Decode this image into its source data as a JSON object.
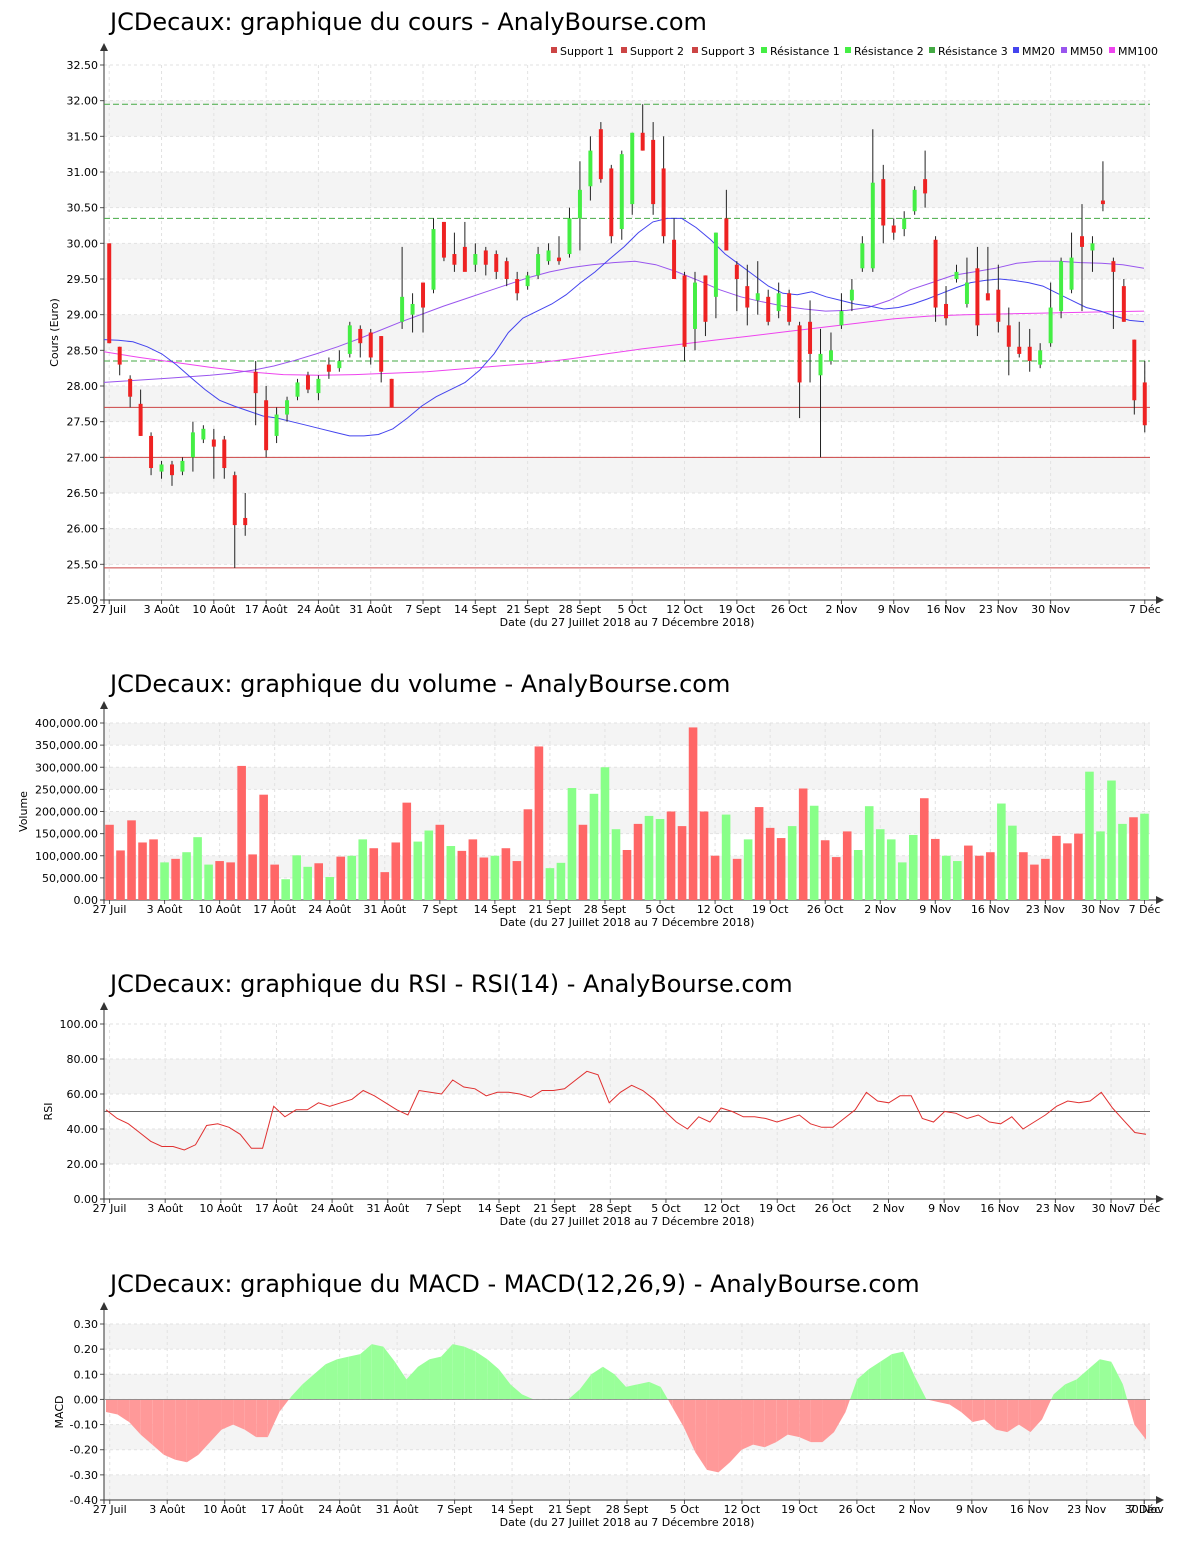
{
  "x_axis": {
    "title": "Date (du 27 Juillet 2018 au 7 Décembre 2018)",
    "ticks": [
      "27 Juil",
      "3 Août",
      "10 Août",
      "17 Août",
      "24 Août",
      "31 Août",
      "7 Sept",
      "14 Sept",
      "21 Sept",
      "28 Sept",
      "5 Oct",
      "12 Oct",
      "19 Oct",
      "26 Oct",
      "2 Nov",
      "9 Nov",
      "16 Nov",
      "23 Nov",
      "30 Nov",
      "7 Déc"
    ]
  },
  "colors": {
    "up": "#44ee44",
    "down": "#ee2222",
    "vol_up": "#88ff88",
    "vol_down": "#ff6666",
    "support": "#cc4444",
    "resistance": "#44aa44",
    "mm20": "#4444ee",
    "mm50": "#9955ee",
    "mm100": "#ee44ee"
  },
  "chart_data": [
    {
      "id": "price",
      "type": "candlestick",
      "title": "JCDecaux: graphique du cours - AnalyBourse.com",
      "ylabel": "Cours (Euro)",
      "ylim": [
        25,
        32.5
      ],
      "yticks": [
        "25.00",
        "25.50",
        "26.00",
        "26.50",
        "27.00",
        "27.50",
        "28.00",
        "28.50",
        "29.00",
        "29.50",
        "30.00",
        "30.50",
        "31.00",
        "31.50",
        "32.00",
        "32.50"
      ],
      "legend": [
        "Support 1",
        "Support 2",
        "Support 3",
        "Résistance 1",
        "Résistance 2",
        "Résistance 3",
        "MM20",
        "MM50",
        "MM100"
      ],
      "supports": [
        27.7,
        27.0,
        25.45
      ],
      "resistances": [
        31.95,
        30.35,
        28.35
      ],
      "candles": [
        [
          30.0,
          28.6,
          30.0,
          28.6
        ],
        [
          28.55,
          28.15,
          28.55,
          28.3
        ],
        [
          28.15,
          27.7,
          28.1,
          27.85
        ],
        [
          27.95,
          27.3,
          27.75,
          27.3
        ],
        [
          27.35,
          26.75,
          27.3,
          26.85
        ],
        [
          26.95,
          26.7,
          26.8,
          26.9
        ],
        [
          26.95,
          26.6,
          26.9,
          26.75
        ],
        [
          27.0,
          26.75,
          26.8,
          26.95
        ],
        [
          27.5,
          26.8,
          27.0,
          27.35
        ],
        [
          27.45,
          27.2,
          27.25,
          27.4
        ],
        [
          27.4,
          26.7,
          27.25,
          27.15
        ],
        [
          27.3,
          26.7,
          27.25,
          26.85
        ],
        [
          26.8,
          25.45,
          26.75,
          26.05
        ],
        [
          26.5,
          25.9,
          26.15,
          26.05
        ],
        [
          28.35,
          27.45,
          28.2,
          27.9
        ],
        [
          28.0,
          27.0,
          27.8,
          27.1
        ],
        [
          27.7,
          27.2,
          27.3,
          27.6
        ],
        [
          27.85,
          27.5,
          27.6,
          27.8
        ],
        [
          28.1,
          27.8,
          27.85,
          28.05
        ],
        [
          28.2,
          27.9,
          28.15,
          27.95
        ],
        [
          28.15,
          27.8,
          27.9,
          28.1
        ],
        [
          28.4,
          28.1,
          28.3,
          28.2
        ],
        [
          28.5,
          28.2,
          28.25,
          28.35
        ],
        [
          28.9,
          28.4,
          28.45,
          28.85
        ],
        [
          28.85,
          28.4,
          28.8,
          28.6
        ],
        [
          28.8,
          28.3,
          28.75,
          28.4
        ],
        [
          28.7,
          28.05,
          28.7,
          28.2
        ],
        [
          28.1,
          27.7,
          28.1,
          27.7
        ],
        [
          29.95,
          28.8,
          28.9,
          29.25
        ],
        [
          29.3,
          28.75,
          29.0,
          29.15
        ],
        [
          29.4,
          28.75,
          29.45,
          29.1
        ],
        [
          30.35,
          29.3,
          29.35,
          30.2
        ],
        [
          30.3,
          29.75,
          30.3,
          29.8
        ],
        [
          30.15,
          29.6,
          29.85,
          29.7
        ],
        [
          30.3,
          29.7,
          29.95,
          29.6
        ],
        [
          30.0,
          29.6,
          29.7,
          29.85
        ],
        [
          29.95,
          29.55,
          29.9,
          29.7
        ],
        [
          29.9,
          29.5,
          29.85,
          29.6
        ],
        [
          29.8,
          29.4,
          29.75,
          29.5
        ],
        [
          29.6,
          29.2,
          29.5,
          29.3
        ],
        [
          29.6,
          29.35,
          29.4,
          29.55
        ],
        [
          29.95,
          29.5,
          29.55,
          29.85
        ],
        [
          30.0,
          29.7,
          29.75,
          29.9
        ],
        [
          30.1,
          29.7,
          29.8,
          29.75
        ],
        [
          30.5,
          29.8,
          29.85,
          30.35
        ],
        [
          31.15,
          29.9,
          30.35,
          30.75
        ],
        [
          31.5,
          30.6,
          30.8,
          31.3
        ],
        [
          31.7,
          30.85,
          31.6,
          30.9
        ],
        [
          31.1,
          30.0,
          31.05,
          30.1
        ],
        [
          31.3,
          30.05,
          30.2,
          31.25
        ],
        [
          31.55,
          30.4,
          30.55,
          31.55
        ],
        [
          31.95,
          31.3,
          31.55,
          31.3
        ],
        [
          31.7,
          30.4,
          31.45,
          30.55
        ],
        [
          31.5,
          30.0,
          31.05,
          30.1
        ],
        [
          30.35,
          29.55,
          30.05,
          29.5
        ],
        [
          29.6,
          28.35,
          29.55,
          28.55
        ],
        [
          29.6,
          28.5,
          28.8,
          29.45
        ],
        [
          29.55,
          28.7,
          29.55,
          28.9
        ],
        [
          30.15,
          28.95,
          29.25,
          30.15
        ],
        [
          30.75,
          29.95,
          30.35,
          29.9
        ],
        [
          29.75,
          29.05,
          29.7,
          29.5
        ],
        [
          29.7,
          28.85,
          29.4,
          29.1
        ],
        [
          29.75,
          29.0,
          29.2,
          29.3
        ],
        [
          29.35,
          28.85,
          29.25,
          28.9
        ],
        [
          29.45,
          28.95,
          29.05,
          29.3
        ],
        [
          29.35,
          28.85,
          29.3,
          28.9
        ],
        [
          28.9,
          27.55,
          28.85,
          28.05
        ],
        [
          29.2,
          28.05,
          28.9,
          28.45
        ],
        [
          28.8,
          27.0,
          28.15,
          28.45
        ],
        [
          28.75,
          28.3,
          28.35,
          28.5
        ],
        [
          29.3,
          28.8,
          28.85,
          29.05
        ],
        [
          29.5,
          29.05,
          29.2,
          29.35
        ],
        [
          30.1,
          29.6,
          29.65,
          30.0
        ],
        [
          31.6,
          29.6,
          29.65,
          30.85
        ],
        [
          31.1,
          30.0,
          30.9,
          30.25
        ],
        [
          30.35,
          30.05,
          30.25,
          30.15
        ],
        [
          30.45,
          30.1,
          30.2,
          30.35
        ],
        [
          30.8,
          30.4,
          30.45,
          30.75
        ],
        [
          31.3,
          30.5,
          30.9,
          30.7
        ],
        [
          30.1,
          28.9,
          30.05,
          29.1
        ],
        [
          29.4,
          28.85,
          29.15,
          28.95
        ],
        [
          29.7,
          29.45,
          29.5,
          29.6
        ],
        [
          29.8,
          29.1,
          29.15,
          29.45
        ],
        [
          29.95,
          28.7,
          29.65,
          28.85
        ],
        [
          29.95,
          29.2,
          29.3,
          29.2
        ],
        [
          29.7,
          28.75,
          29.35,
          28.9
        ],
        [
          29.1,
          28.15,
          28.85,
          28.55
        ],
        [
          28.9,
          28.4,
          28.55,
          28.45
        ],
        [
          28.8,
          28.2,
          28.55,
          28.35
        ],
        [
          28.6,
          28.25,
          28.3,
          28.5
        ],
        [
          29.45,
          28.55,
          28.6,
          29.1
        ],
        [
          29.8,
          28.95,
          29.05,
          29.75
        ],
        [
          30.15,
          29.3,
          29.35,
          29.8
        ],
        [
          30.55,
          29.05,
          30.1,
          29.95
        ],
        [
          30.1,
          29.6,
          29.9,
          30.0
        ],
        [
          31.15,
          30.45,
          30.6,
          30.55
        ],
        [
          29.8,
          28.8,
          29.75,
          29.6
        ],
        [
          29.5,
          28.9,
          29.4,
          28.9
        ],
        [
          28.65,
          27.6,
          28.65,
          27.8
        ],
        [
          28.35,
          27.35,
          28.05,
          27.45
        ]
      ],
      "ma20": [
        28.65,
        28.64,
        28.62,
        28.55,
        28.45,
        28.3,
        28.12,
        27.95,
        27.8,
        27.72,
        27.65,
        27.58,
        27.55,
        27.5,
        27.45,
        27.4,
        27.35,
        27.3,
        27.3,
        27.32,
        27.4,
        27.55,
        27.72,
        27.85,
        27.95,
        28.05,
        28.22,
        28.45,
        28.75,
        28.95,
        29.05,
        29.15,
        29.28,
        29.45,
        29.6,
        29.78,
        29.95,
        30.15,
        30.3,
        30.35,
        30.35,
        30.22,
        30.05,
        29.85,
        29.7,
        29.55,
        29.4,
        29.3,
        29.28,
        29.32,
        29.25,
        29.2,
        29.15,
        29.12,
        29.08,
        29.1,
        29.15,
        29.22,
        29.3,
        29.38,
        29.45,
        29.48,
        29.5,
        29.48,
        29.45,
        29.4,
        29.3,
        29.2,
        29.1,
        29.05,
        28.98,
        28.92,
        28.9
      ],
      "ma50": [
        28.05,
        28.07,
        28.09,
        28.11,
        28.13,
        28.15,
        28.18,
        28.22,
        28.28,
        28.36,
        28.45,
        28.55,
        28.66,
        28.78,
        28.9,
        29.01,
        29.12,
        29.22,
        29.32,
        29.42,
        29.52,
        29.6,
        29.66,
        29.7,
        29.73,
        29.75,
        29.7,
        29.6,
        29.48,
        29.35,
        29.25,
        29.18,
        29.12,
        29.08,
        29.05,
        29.06,
        29.1,
        29.2,
        29.35,
        29.45,
        29.55,
        29.6,
        29.65,
        29.72,
        29.75,
        29.75,
        29.73,
        29.72,
        29.7,
        29.65
      ],
      "ma100": [
        28.48,
        28.4,
        28.33,
        28.26,
        28.2,
        28.16,
        28.15,
        28.16,
        28.18,
        28.2,
        28.24,
        28.28,
        28.32,
        28.38,
        28.45,
        28.52,
        28.58,
        28.64,
        28.7,
        28.76,
        28.82,
        28.88,
        28.94,
        28.98,
        29.0,
        29.01,
        29.02,
        29.03,
        29.04,
        29.05
      ]
    },
    {
      "id": "volume",
      "type": "bar",
      "title": "JCDecaux: graphique du volume - AnalyBourse.com",
      "ylabel": "Volume",
      "ylim": [
        0,
        400000
      ],
      "yticks": [
        "0.00",
        "50,000.00",
        "100,000.00",
        "150,000.00",
        "200,000.00",
        "250,000.00",
        "300,000.00",
        "350,000.00",
        "400,000.00"
      ],
      "values": [
        170000,
        112000,
        180000,
        130000,
        137000,
        85000,
        93000,
        108000,
        142000,
        80000,
        88000,
        85000,
        303000,
        103000,
        238000,
        80000,
        47000,
        101000,
        75000,
        83000,
        52000,
        98000,
        100000,
        137000,
        117000,
        63000,
        130000,
        220000,
        132000,
        157000,
        170000,
        122000,
        111000,
        137000,
        96000,
        100000,
        117000,
        88000,
        205000,
        347000,
        72000,
        84000,
        253000,
        170000,
        240000,
        300000,
        160000,
        113000,
        172000,
        190000,
        183000,
        200000,
        167000,
        390000,
        200000,
        100000,
        193000,
        93000,
        137000,
        210000,
        163000,
        140000,
        167000,
        252000,
        213000,
        135000,
        97000,
        155000,
        113000,
        212000,
        160000,
        137000,
        85000,
        147000,
        230000,
        138000,
        100000,
        88000,
        123000,
        100000,
        108000,
        218000,
        168000,
        108000,
        80000,
        93000,
        145000,
        128000,
        150000,
        290000,
        155000,
        270000,
        172000,
        187000,
        195000
      ]
    },
    {
      "id": "rsi",
      "type": "line",
      "title": "JCDecaux: graphique du RSI - RSI(14) - AnalyBourse.com",
      "ylabel": "RSI",
      "ylim": [
        0,
        100
      ],
      "yticks": [
        "0.00",
        "20.00",
        "40.00",
        "60.00",
        "80.00",
        "100.00"
      ],
      "reference": 50,
      "values": [
        51,
        46,
        43,
        38,
        33,
        30,
        30,
        28,
        31,
        42,
        43,
        41,
        37,
        29,
        29,
        53,
        47,
        51,
        51,
        55,
        53,
        55,
        57,
        62,
        59,
        55,
        51,
        48,
        62,
        61,
        60,
        68,
        64,
        63,
        59,
        61,
        61,
        60,
        58,
        62,
        62,
        63,
        68,
        73,
        71,
        55,
        61,
        65,
        62,
        57,
        50,
        44,
        40,
        47,
        44,
        52,
        50,
        47,
        47,
        46,
        44,
        46,
        48,
        43,
        41,
        41,
        46,
        51,
        61,
        56,
        55,
        59,
        59,
        46,
        44,
        50,
        49,
        46,
        48,
        44,
        43,
        47,
        40,
        44,
        48,
        53,
        56,
        55,
        56,
        61,
        52,
        45,
        38,
        37
      ]
    },
    {
      "id": "macd",
      "type": "area",
      "title": "JCDecaux: graphique du MACD - MACD(12,26,9) - AnalyBourse.com",
      "ylabel": "MACD",
      "ylim": [
        -0.4,
        0.3
      ],
      "yticks": [
        "-0.40",
        "-0.30",
        "-0.20",
        "-0.10",
        "0.00",
        "0.10",
        "0.20",
        "0.30"
      ],
      "values": [
        -0.05,
        -0.06,
        -0.09,
        -0.14,
        -0.18,
        -0.22,
        -0.24,
        -0.25,
        -0.22,
        -0.17,
        -0.12,
        -0.1,
        -0.12,
        -0.15,
        -0.15,
        -0.05,
        0.01,
        0.06,
        0.1,
        0.14,
        0.16,
        0.17,
        0.18,
        0.22,
        0.21,
        0.15,
        0.08,
        0.13,
        0.16,
        0.17,
        0.22,
        0.21,
        0.19,
        0.16,
        0.12,
        0.06,
        0.02,
        0.0,
        0.0,
        0.0,
        0.0,
        0.04,
        0.1,
        0.13,
        0.1,
        0.05,
        0.06,
        0.07,
        0.05,
        -0.03,
        -0.11,
        -0.21,
        -0.28,
        -0.29,
        -0.25,
        -0.2,
        -0.18,
        -0.19,
        -0.17,
        -0.14,
        -0.15,
        -0.17,
        -0.17,
        -0.13,
        -0.05,
        0.08,
        0.12,
        0.15,
        0.18,
        0.19,
        0.09,
        0.0,
        -0.01,
        -0.02,
        -0.05,
        -0.09,
        -0.08,
        -0.12,
        -0.13,
        -0.1,
        -0.13,
        -0.08,
        0.02,
        0.06,
        0.08,
        0.12,
        0.16,
        0.15,
        0.06,
        -0.1,
        -0.16
      ]
    }
  ]
}
